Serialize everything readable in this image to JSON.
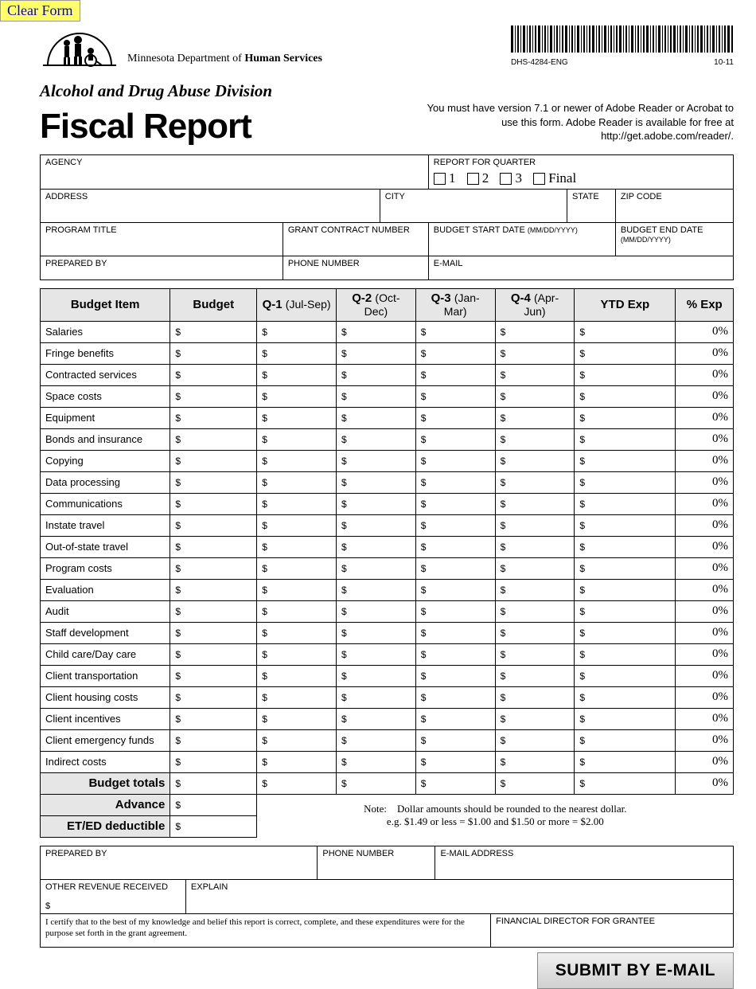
{
  "buttons": {
    "clear": "Clear Form",
    "submit": "SUBMIT BY E-MAIL"
  },
  "department": {
    "prefix": "Minnesota Department of ",
    "bold": "Human Services"
  },
  "barcode": {
    "code": "DHS-4284-ENG",
    "rev": "10-11"
  },
  "division": "Alcohol and Drug Abuse Division",
  "title": "Fiscal Report",
  "reader_note": "You must have version 7.1 or newer of Adobe Reader or Acrobat to use this form. Adobe Reader is available for free at http://get.adobe.com/reader/.",
  "form": {
    "agency": "AGENCY",
    "quarter_label": "REPORT FOR QUARTER",
    "q1": "1",
    "q2": "2",
    "q3": "3",
    "qfinal": "Final",
    "address": "ADDRESS",
    "city": "CITY",
    "state": "STATE",
    "zip": "ZIP CODE",
    "program": "PROGRAM TITLE",
    "grant": "GRANT CONTRACT NUMBER",
    "bstart": "BUDGET START DATE ",
    "bstart_fmt": "(MM/DD/YYYY)",
    "bend": "BUDGET END DATE ",
    "bend_fmt": "(MM/DD/YYYY)",
    "prepared": "PREPARED BY",
    "phone": "PHONE NUMBER",
    "email": "E-MAIL"
  },
  "table": {
    "headers": {
      "item": "Budget Item",
      "budget": "Budget",
      "q1b": "Q-1",
      "q1s": "(Jul-Sep)",
      "q2b": "Q-2",
      "q2s": "(Oct-Dec)",
      "q3b": "Q-3",
      "q3s": "(Jan-Mar)",
      "q4b": "Q-4",
      "q4s": "(Apr-Jun)",
      "ytd": "YTD Exp",
      "pct": "% Exp"
    },
    "items": [
      "Salaries",
      "Fringe benefits",
      "Contracted services",
      "Space costs",
      "Equipment",
      "Bonds and insurance",
      "Copying",
      "Data processing",
      "Communications",
      "Instate travel",
      "Out-of-state travel",
      "Program costs",
      "Evaluation",
      "Audit",
      "Staff development",
      "Child care/Day care",
      "Client transportation",
      "Client housing costs",
      "Client incentives",
      "Client emergency funds",
      "Indirect costs"
    ],
    "dollar": "$",
    "pct_default": "0%",
    "totals": "Budget totals",
    "advance": "Advance",
    "eted": "ET/ED deductible",
    "note_label": "Note:",
    "note1": "Dollar amounts should be rounded to the nearest dollar.",
    "note2": "e.g. $1.49 or less = $1.00 and $1.50 or more = $2.00"
  },
  "bottom": {
    "prepared": "PREPARED BY",
    "phone": "PHONE NUMBER",
    "email": "E-MAIL ADDRESS",
    "other_rev": "OTHER REVENUE RECEIVED",
    "explain": "EXPLAIN",
    "cert": "I certify that to the best of my knowledge and belief this report is correct, complete, and these expenditures were for the purpose set forth in the grant agreement.",
    "findir": "FINANCIAL DIRECTOR FOR GRANTEE",
    "dollar": "$"
  }
}
